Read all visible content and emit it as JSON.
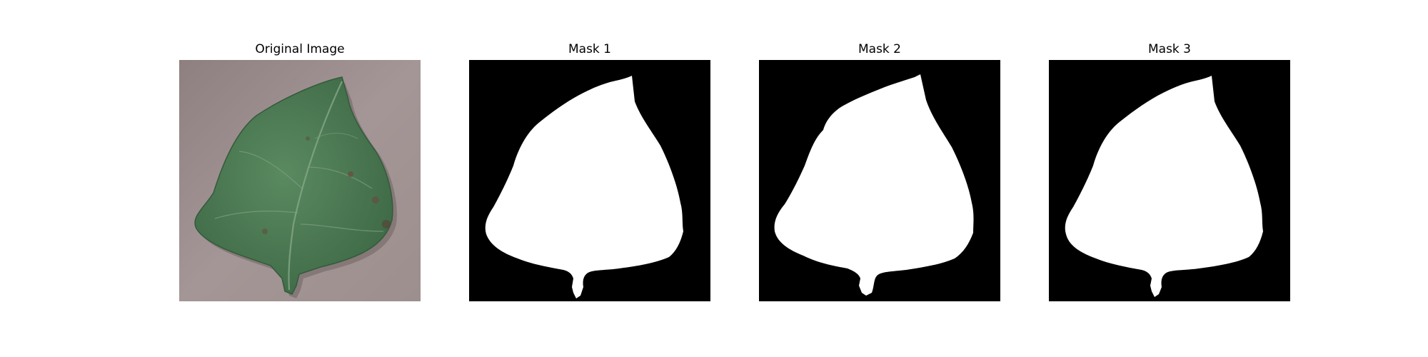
{
  "figure": {
    "panels": [
      {
        "title": "Original Image",
        "kind": "photo",
        "subject": "leaf"
      },
      {
        "title": "Mask 1",
        "kind": "mask"
      },
      {
        "title": "Mask 2",
        "kind": "mask"
      },
      {
        "title": "Mask 3",
        "kind": "mask"
      }
    ],
    "colors": {
      "background_photo": "#9a8c8c",
      "leaf": "#4c7a52",
      "leaf_dark": "#3e6645",
      "vein": "#7fa081",
      "spot": "#6b4a3c",
      "mask_background": "#000000",
      "mask_foreground": "#ffffff"
    }
  }
}
